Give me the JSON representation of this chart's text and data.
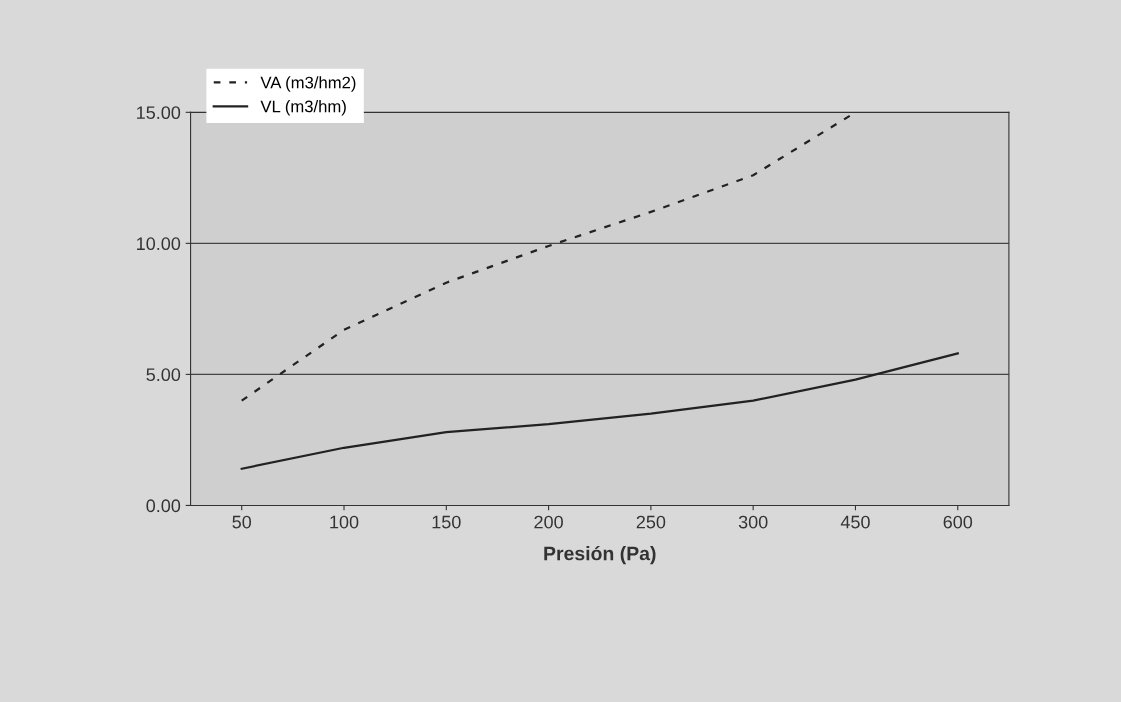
{
  "chart_data": {
    "type": "line",
    "xlabel": "Presión (Pa)",
    "categories": [
      "50",
      "100",
      "150",
      "200",
      "250",
      "300",
      "450",
      "600"
    ],
    "series": [
      {
        "name": "VA (m3/hm2)",
        "color": "#222222",
        "line_style": "dashed",
        "values": [
          4.0,
          6.7,
          8.5,
          9.9,
          11.2,
          12.6,
          15.0,
          null
        ]
      },
      {
        "name": "VL (m3/hm)",
        "color": "#222222",
        "line_style": "solid",
        "values": [
          1.4,
          2.2,
          2.8,
          3.1,
          3.5,
          4.0,
          4.8,
          5.8
        ]
      }
    ],
    "ylim": [
      0,
      15
    ],
    "yticks": [
      {
        "value": 0,
        "label": "0.00"
      },
      {
        "value": 5,
        "label": "5.00"
      },
      {
        "value": 10,
        "label": "10.00"
      },
      {
        "value": 15,
        "label": "15.00"
      }
    ],
    "grid": "y",
    "legend": "top left",
    "marker": "none"
  }
}
